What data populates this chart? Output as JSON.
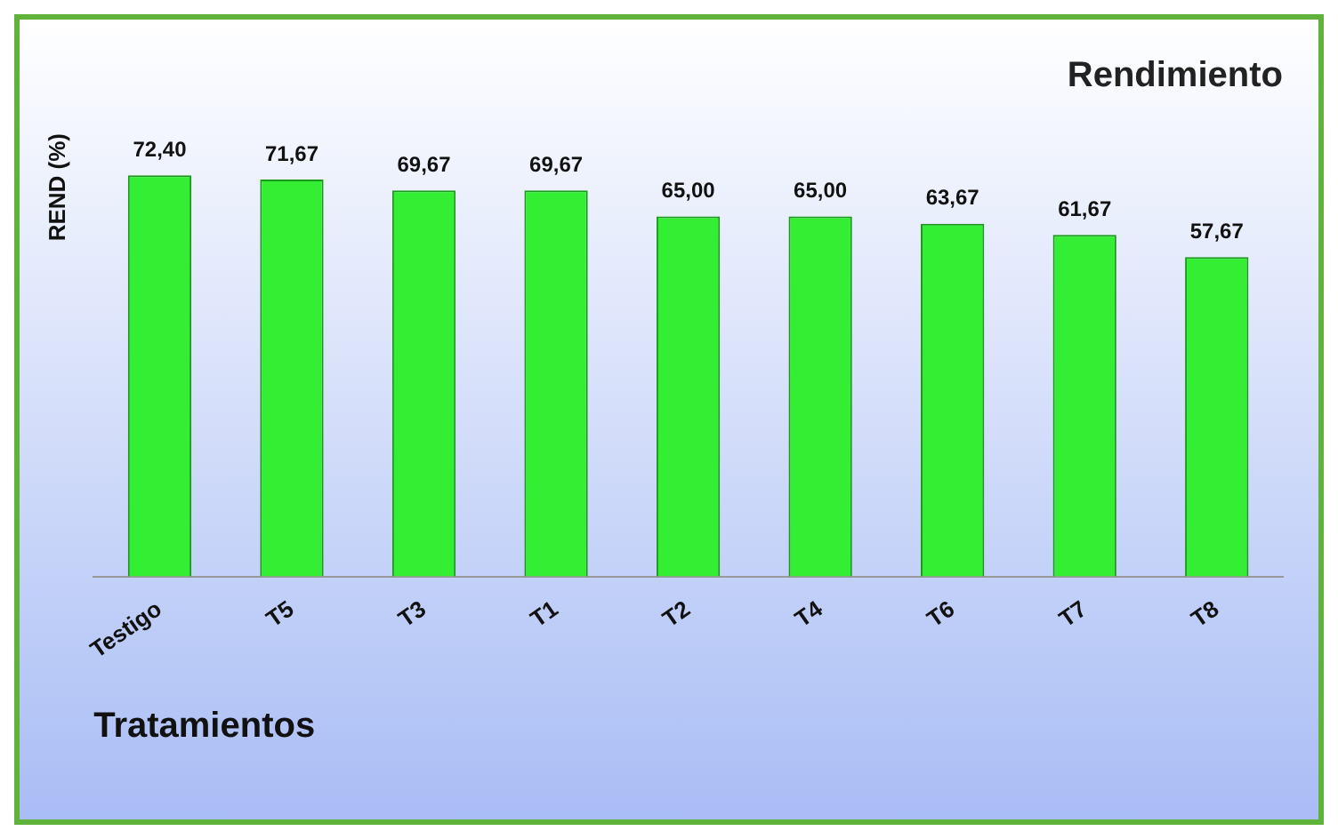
{
  "chart_data": {
    "type": "bar",
    "title": "Rendimiento",
    "xlabel": "Tratamientos",
    "ylabel": "REND (%)",
    "categories": [
      "Testigo",
      "T5",
      "T3",
      "T1",
      "T2",
      "T4",
      "T6",
      "T7",
      "T8"
    ],
    "values": [
      72.4,
      71.67,
      69.67,
      69.67,
      65.0,
      65.0,
      63.67,
      61.67,
      57.67
    ],
    "value_labels": [
      "72,40",
      "71,67",
      "69,67",
      "69,67",
      "65,00",
      "65,00",
      "63,67",
      "61,67",
      "57,67"
    ],
    "color": "#33ee33",
    "grid": false,
    "legend": false
  }
}
